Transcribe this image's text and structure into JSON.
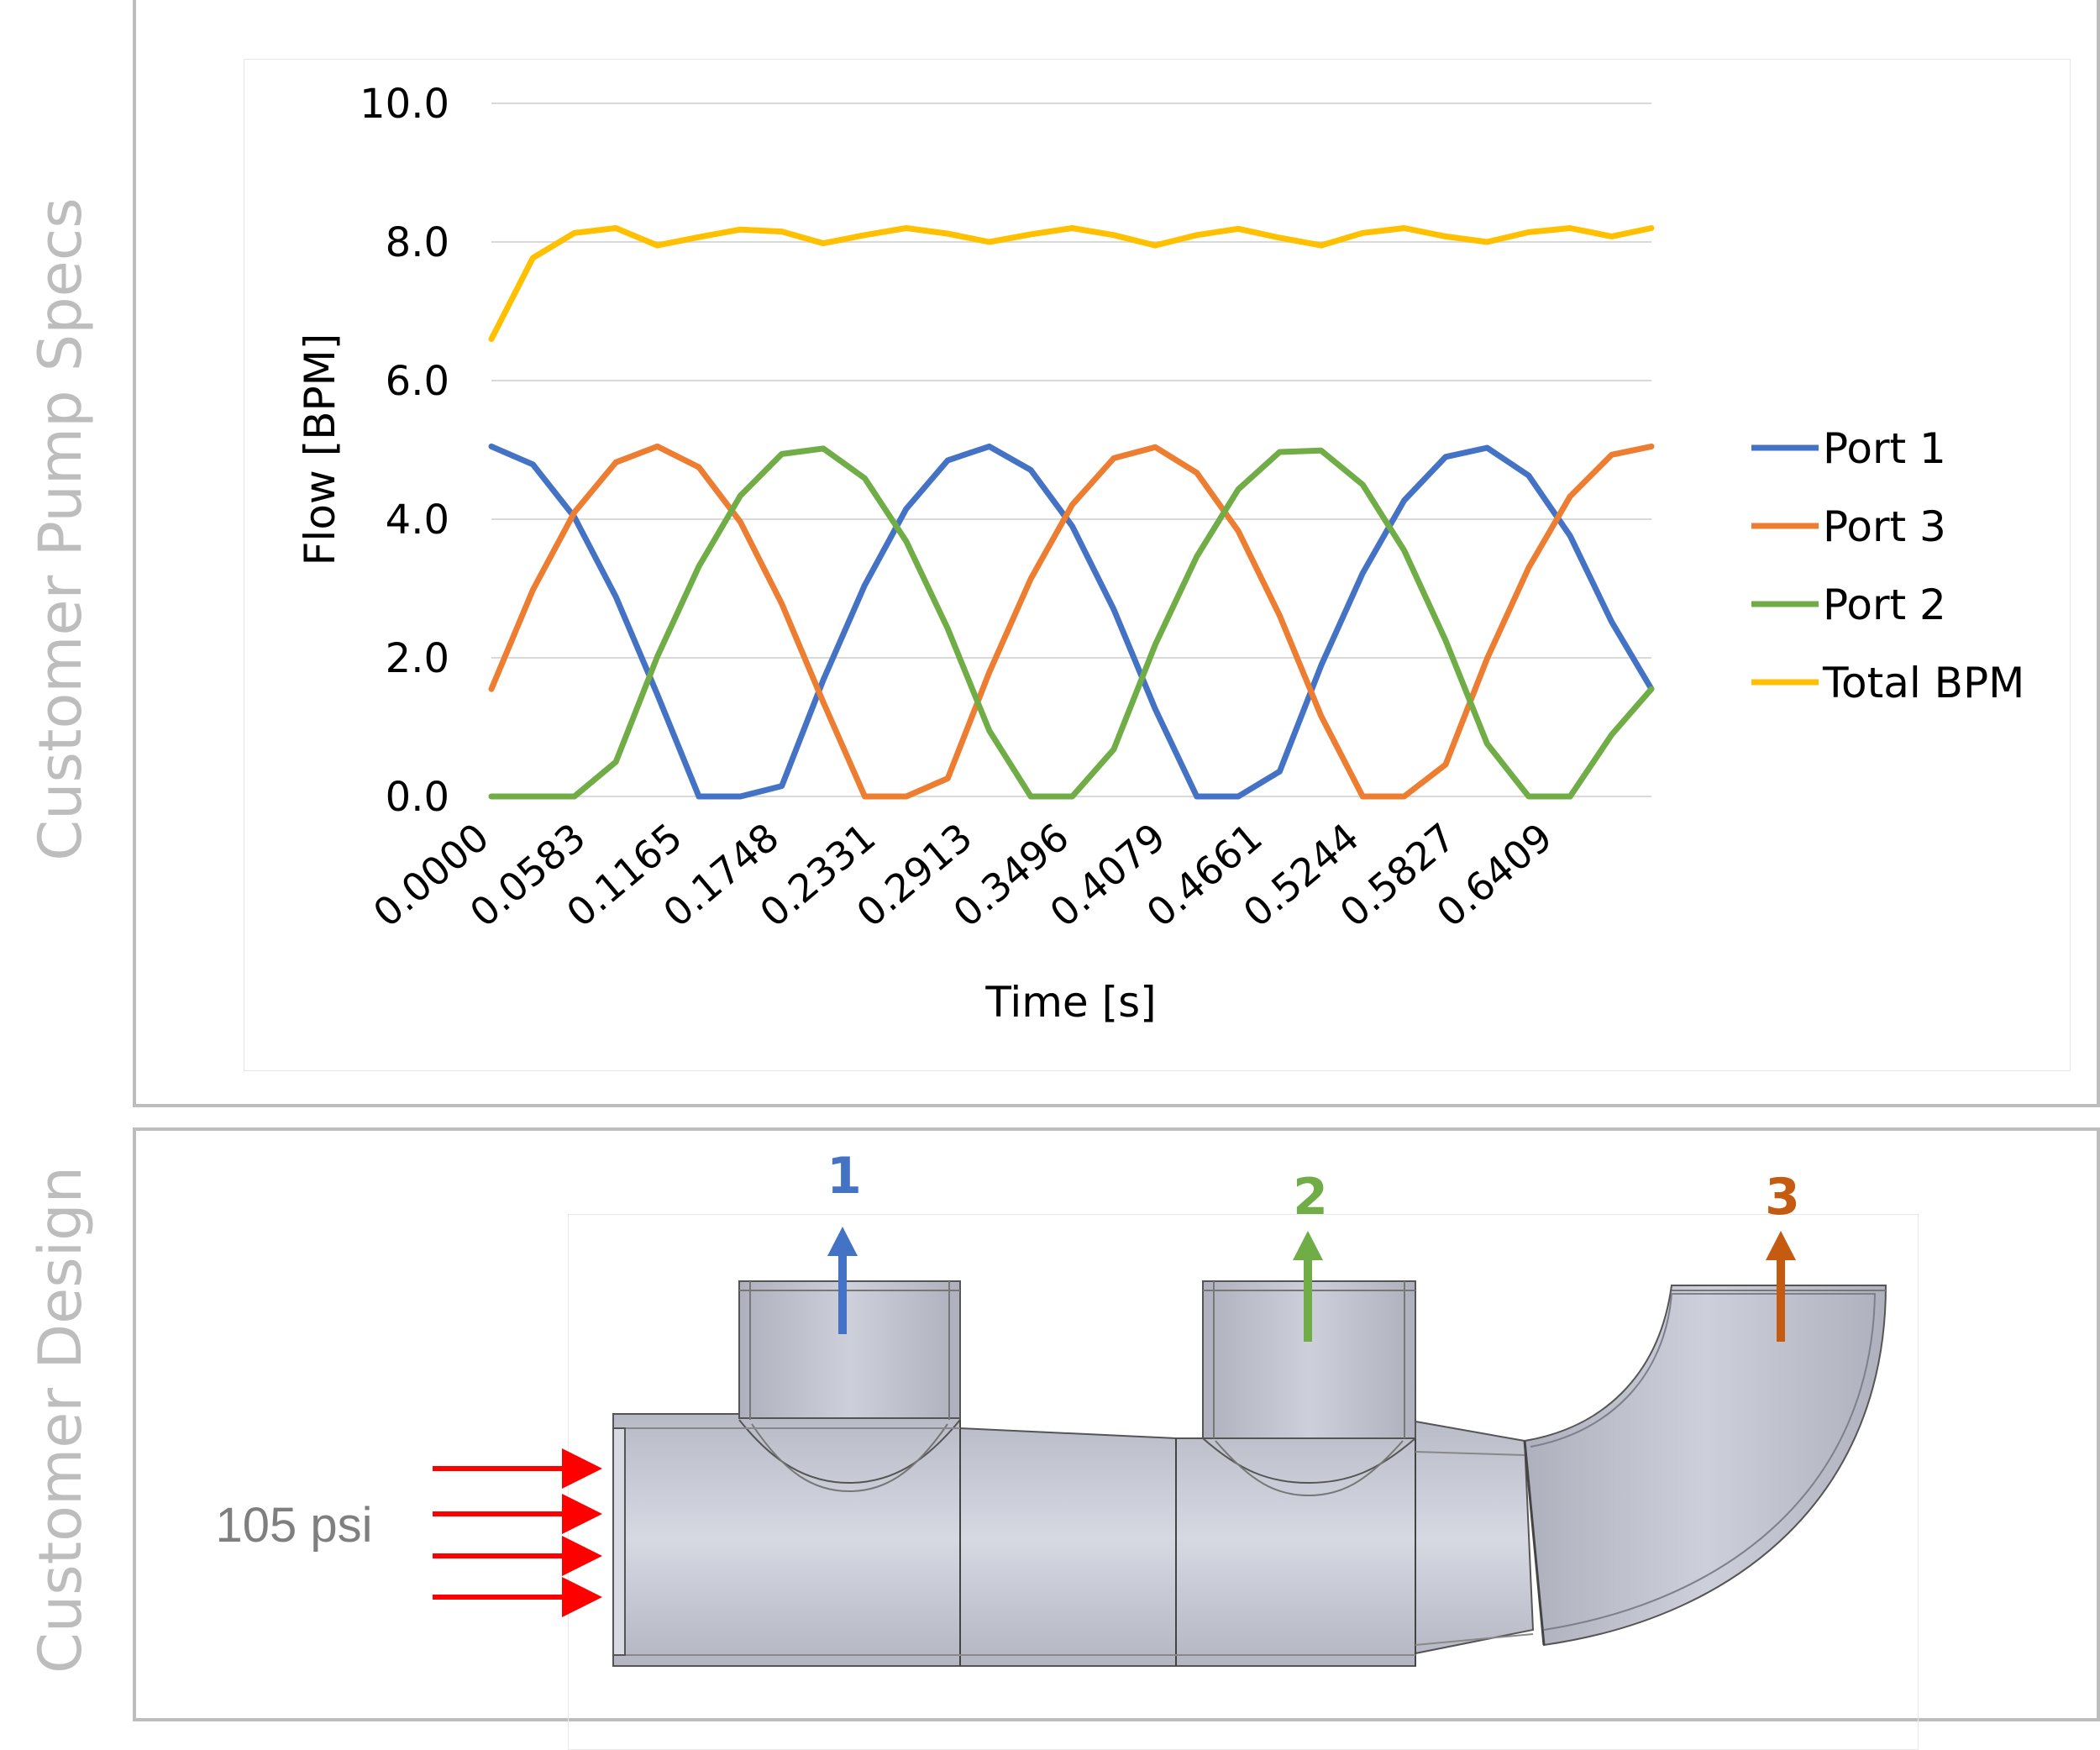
{
  "panels": {
    "top_label": "Customer Pump Specs",
    "bottom_label": "Customer Design"
  },
  "chart_data": {
    "type": "line",
    "title": "",
    "xlabel": "Time [s]",
    "ylabel": "Flow [BPM]",
    "ylim": [
      0,
      10
    ],
    "xlim": [
      0,
      0.699
    ],
    "yticks": [
      "0.0",
      "2.0",
      "4.0",
      "6.0",
      "8.0",
      "10.0"
    ],
    "xticks": [
      "0.0000",
      "0.0583",
      "0.1165",
      "0.1748",
      "0.2331",
      "0.2913",
      "0.3496",
      "0.4079",
      "0.4661",
      "0.5244",
      "0.5827",
      "0.6409"
    ],
    "grid": "horizontal",
    "legend": "right",
    "x": [
      0.0,
      0.025,
      0.05,
      0.075,
      0.1,
      0.125,
      0.15,
      0.175,
      0.2,
      0.225,
      0.25,
      0.275,
      0.3,
      0.325,
      0.35,
      0.375,
      0.4,
      0.425,
      0.45,
      0.475,
      0.5,
      0.525,
      0.55,
      0.575,
      0.6,
      0.625,
      0.65,
      0.675,
      0.699
    ],
    "series": [
      {
        "name": "Port 1",
        "color": "#4472c4",
        "values": [
          5.05,
          4.79,
          4.03,
          2.88,
          1.47,
          0.0,
          0.0,
          0.15,
          1.68,
          3.05,
          4.15,
          4.85,
          5.05,
          4.71,
          3.9,
          2.7,
          1.26,
          0.0,
          0.0,
          0.36,
          1.89,
          3.22,
          4.27,
          4.9,
          5.03,
          4.63,
          3.76,
          2.52,
          1.55
        ]
      },
      {
        "name": "Port 3",
        "color": "#ed7d31",
        "values": [
          1.55,
          2.98,
          4.1,
          4.82,
          5.05,
          4.75,
          3.96,
          2.78,
          1.36,
          0.0,
          0.0,
          0.26,
          1.79,
          3.14,
          4.21,
          4.88,
          5.04,
          4.67,
          3.83,
          2.61,
          1.16,
          0.0,
          0.0,
          0.46,
          1.99,
          3.3,
          4.33,
          4.93,
          5.05
        ]
      },
      {
        "name": "Port 2",
        "color": "#70ad47",
        "values": [
          0.0,
          0.0,
          0.0,
          0.5,
          2.02,
          3.32,
          4.34,
          4.94,
          5.02,
          4.59,
          3.68,
          2.42,
          0.95,
          0.0,
          0.0,
          0.68,
          2.19,
          3.46,
          4.43,
          4.97,
          4.99,
          4.5,
          3.55,
          2.25,
          0.76,
          0.0,
          0.0,
          0.89,
          1.55
        ]
      },
      {
        "name": "Total BPM",
        "color": "#ffc000",
        "values": [
          6.6,
          7.77,
          8.13,
          8.2,
          7.95,
          8.07,
          8.18,
          8.15,
          7.98,
          8.1,
          8.2,
          8.12,
          8.0,
          8.11,
          8.2,
          8.1,
          7.95,
          8.1,
          8.19,
          8.06,
          7.95,
          8.13,
          8.2,
          8.08,
          8.0,
          8.14,
          8.2,
          8.08,
          8.2
        ]
      }
    ]
  },
  "design": {
    "outlets": [
      {
        "label": "1",
        "color": "#4472c4"
      },
      {
        "label": "2",
        "color": "#70ad47"
      },
      {
        "label": "3",
        "color": "#c55a11"
      }
    ],
    "inlet_pressure": "105 psi",
    "inlet_arrow_color": "#ff0000",
    "pipe_color": "#c4c7d2"
  }
}
